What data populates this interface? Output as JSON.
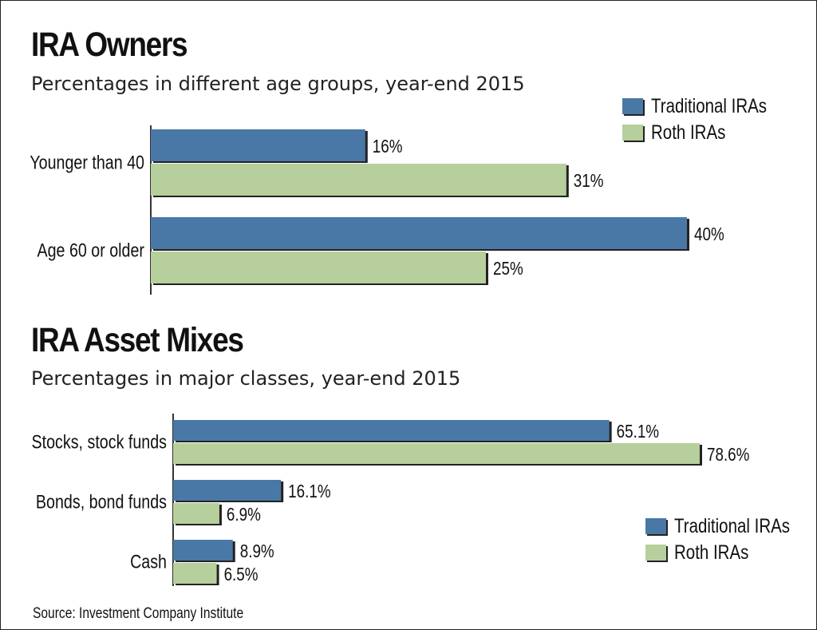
{
  "colors": {
    "traditional": "#4a78a6",
    "roth": "#b6cf9c",
    "bar_shadow": "#222222",
    "text": "#111111"
  },
  "source": "Source: Investment Company Institute",
  "chart_data": [
    {
      "type": "bar",
      "orientation": "horizontal",
      "title": "IRA Owners",
      "subtitle": "Percentages in different age groups, year-end 2015",
      "categories": [
        "Younger than 40",
        "Age 60 or older"
      ],
      "series": [
        {
          "name": "Traditional IRAs",
          "values": [
            16,
            40
          ],
          "labels": [
            "16%",
            "40%"
          ]
        },
        {
          "name": "Roth IRAs",
          "values": [
            31,
            25
          ],
          "labels": [
            "31%",
            "25%"
          ]
        }
      ],
      "xlim": [
        0,
        40
      ],
      "grid": false,
      "legend_position": "top-right"
    },
    {
      "type": "bar",
      "orientation": "horizontal",
      "title": "IRA Asset Mixes",
      "subtitle": "Percentages in major classes, year-end 2015",
      "categories": [
        "Stocks, stock funds",
        "Bonds, bond funds",
        "Cash"
      ],
      "series": [
        {
          "name": "Traditional IRAs",
          "values": [
            65.1,
            16.1,
            8.9
          ],
          "labels": [
            "65.1%",
            "16.1%",
            "8.9%"
          ]
        },
        {
          "name": "Roth IRAs",
          "values": [
            78.6,
            6.9,
            6.5
          ],
          "labels": [
            "78.6%",
            "6.9%",
            "6.5%"
          ]
        }
      ],
      "xlim": [
        0,
        78.6
      ],
      "grid": false,
      "legend_position": "bottom-right"
    }
  ]
}
